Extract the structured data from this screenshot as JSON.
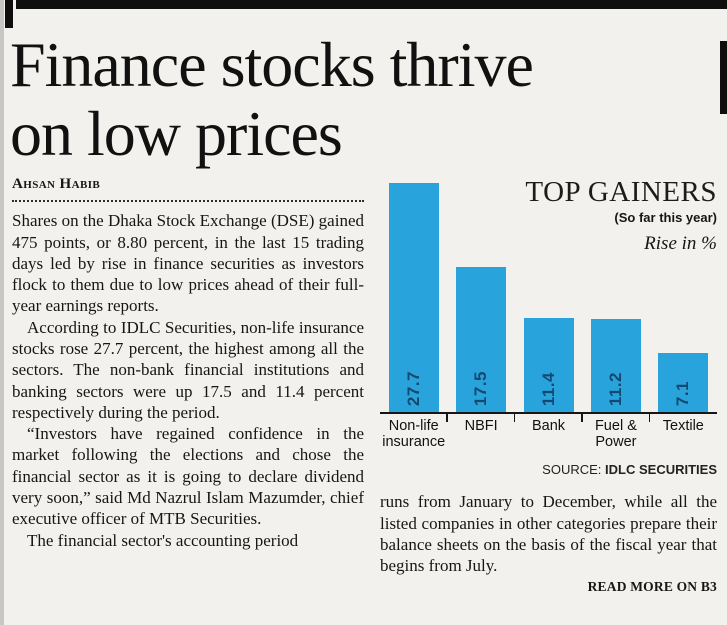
{
  "article": {
    "headline_lines": [
      "Finance stocks thrive",
      "on low prices"
    ],
    "byline": "Ahsan Habib",
    "left_paragraphs": [
      "Shares on the Dhaka Stock Exchange (DSE) gained 475 points, or 8.80 percent, in the last 15 trading days led by rise in finance securities as investors flock to them due to low prices ahead of their full-year earnings reports.",
      "According to IDLC Securities, non-life insurance stocks rose 27.7 percent, the highest among all the sectors. The non-bank financial institutions and banking sectors were up 17.5 and 11.4 percent respectively during the period.",
      "“Investors have regained confidence in the market following the elections and chose the financial sector as it is going to declare dividend very soon,” said Md Nazrul Islam Mazumder, chief executive officer of MTB Securities.",
      "The financial sector's accounting period"
    ],
    "right_paragraphs": [
      "runs from January to December, while all the listed companies in other categories prepare their balance sheets on the basis of the fiscal year that begins from July."
    ],
    "read_more": "READ MORE ON B3"
  },
  "chart_data": {
    "type": "bar",
    "title": "TOP GAINERS",
    "subtitle": "(So far this year)",
    "unit_label": "Rise in %",
    "categories": [
      "Non-life insurance",
      "NBFI",
      "Bank",
      "Fuel & Power",
      "Textile"
    ],
    "values": [
      27.7,
      17.5,
      11.4,
      11.2,
      7.1
    ],
    "value_labels": [
      "27.7",
      "17.5",
      "11.4",
      "11.2",
      "7.1"
    ],
    "ylim": [
      0,
      28
    ],
    "grid": false,
    "legend": "none",
    "source_prefix": "SOURCE:",
    "source_name": "IDLC SECURITIES",
    "bar_color": "#29a3dc",
    "value_label_color": "#15486f"
  }
}
